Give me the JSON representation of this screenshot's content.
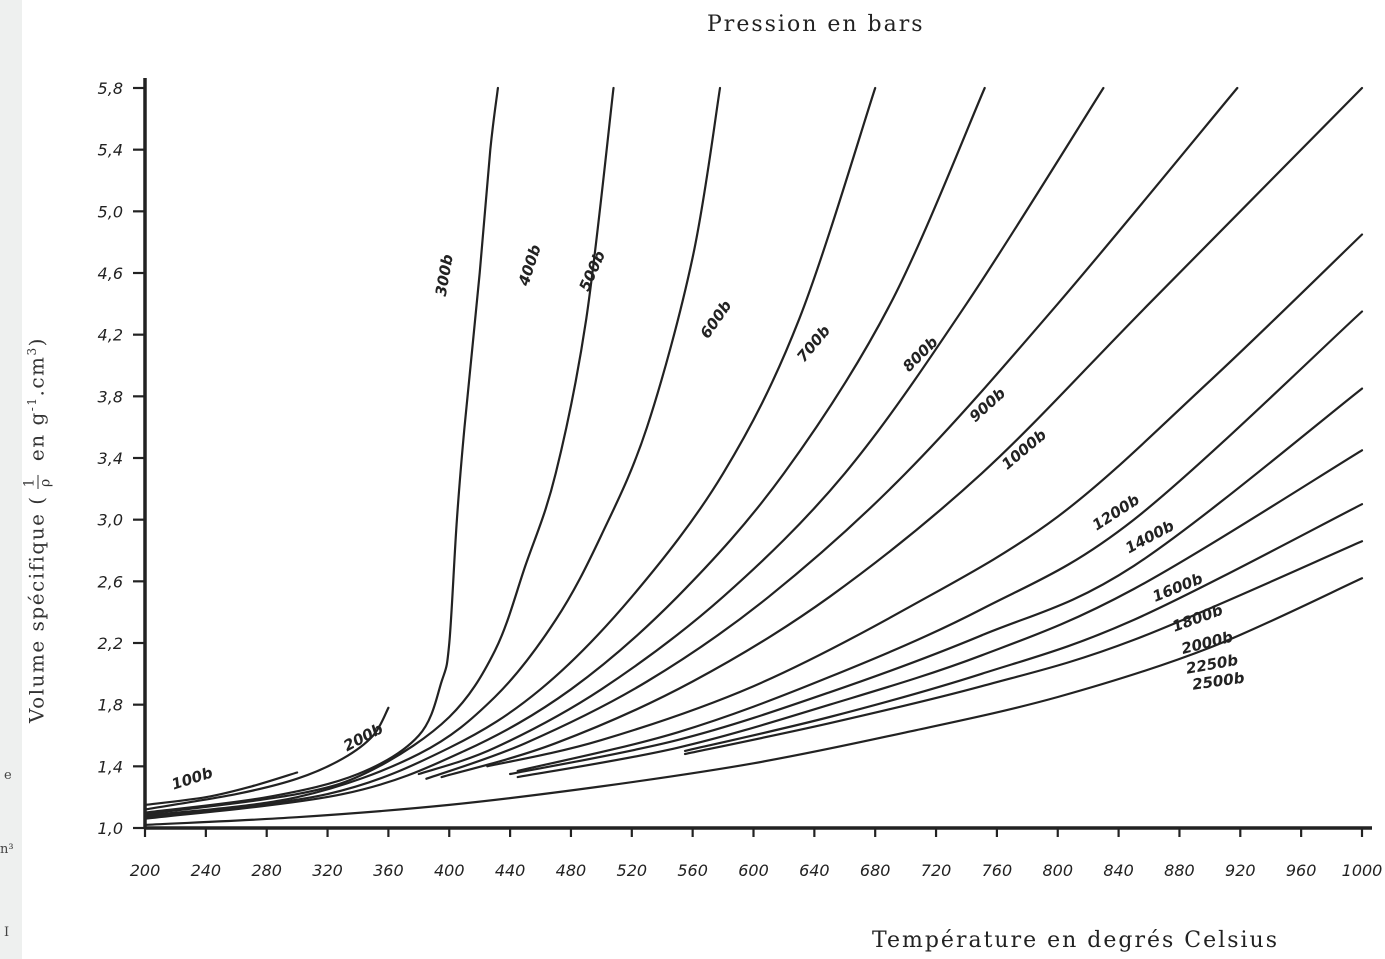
{
  "chart_data": {
    "type": "line",
    "title": "Pression en bars",
    "xlabel": "Température en degrés Celsius",
    "ylabel": {
      "prefix": "Volume spécifique (",
      "frac_num": "1",
      "frac_den": "ρ",
      "suffix": " en g",
      "exp1": "-1",
      "mid": ".cm",
      "exp2": "3",
      "close": ")"
    },
    "xlim": [
      200,
      1000
    ],
    "ylim": [
      1.0,
      5.8
    ],
    "x_ticks": [
      200,
      240,
      280,
      320,
      360,
      400,
      440,
      480,
      520,
      560,
      600,
      640,
      680,
      720,
      760,
      800,
      840,
      880,
      920,
      960,
      1000
    ],
    "x_tick_labels": [
      "200",
      "240",
      "280",
      "320",
      "360",
      "400",
      "440",
      "480",
      "520",
      "560",
      "600",
      "640",
      "680",
      "720",
      "760",
      "800",
      "840",
      "880",
      "920",
      "960",
      "1000"
    ],
    "y_ticks": [
      1.0,
      1.4,
      1.8,
      2.2,
      2.6,
      3.0,
      3.4,
      3.8,
      4.2,
      4.6,
      5.0,
      5.4,
      5.8
    ],
    "y_tick_labels": [
      "1,0",
      "1,4",
      "1,8",
      "2,2",
      "2,6",
      "3,0",
      "3,4",
      "3,8",
      "4,2",
      "4,6",
      "5,0",
      "5,4",
      "5,8"
    ],
    "grid": false,
    "series": [
      {
        "name": "100b",
        "points": [
          [
            200,
            1.15
          ],
          [
            240,
            1.2
          ],
          [
            270,
            1.27
          ],
          [
            300,
            1.36
          ]
        ]
      },
      {
        "name": "200b",
        "points": [
          [
            200,
            1.12
          ],
          [
            260,
            1.22
          ],
          [
            300,
            1.32
          ],
          [
            330,
            1.45
          ],
          [
            350,
            1.6
          ],
          [
            360,
            1.78
          ]
        ]
      },
      {
        "name": "300b",
        "points": [
          [
            200,
            1.1
          ],
          [
            280,
            1.2
          ],
          [
            340,
            1.35
          ],
          [
            380,
            1.6
          ],
          [
            395,
            1.95
          ],
          [
            400,
            2.2
          ],
          [
            405,
            3.0
          ],
          [
            410,
            3.6
          ],
          [
            420,
            4.6
          ],
          [
            427,
            5.4
          ],
          [
            432,
            5.8
          ]
        ]
      },
      {
        "name": "400b",
        "points": [
          [
            200,
            1.09
          ],
          [
            300,
            1.22
          ],
          [
            350,
            1.38
          ],
          [
            400,
            1.72
          ],
          [
            430,
            2.15
          ],
          [
            450,
            2.7
          ],
          [
            470,
            3.3
          ],
          [
            490,
            4.3
          ],
          [
            508,
            5.8
          ]
        ]
      },
      {
        "name": "500b",
        "points": [
          [
            200,
            1.08
          ],
          [
            300,
            1.2
          ],
          [
            380,
            1.48
          ],
          [
            430,
            1.85
          ],
          [
            470,
            2.35
          ],
          [
            500,
            2.9
          ],
          [
            530,
            3.6
          ],
          [
            560,
            4.7
          ],
          [
            578,
            5.8
          ]
        ]
      },
      {
        "name": "600b",
        "points": [
          [
            200,
            1.07
          ],
          [
            320,
            1.22
          ],
          [
            400,
            1.52
          ],
          [
            460,
            1.9
          ],
          [
            520,
            2.5
          ],
          [
            580,
            3.3
          ],
          [
            630,
            4.3
          ],
          [
            680,
            5.8
          ]
        ]
      },
      {
        "name": "700b",
        "points": [
          [
            200,
            1.06
          ],
          [
            330,
            1.22
          ],
          [
            410,
            1.5
          ],
          [
            480,
            1.9
          ],
          [
            550,
            2.5
          ],
          [
            620,
            3.3
          ],
          [
            690,
            4.4
          ],
          [
            752,
            5.8
          ]
        ]
      },
      {
        "name": "800b",
        "points": [
          [
            380,
            1.35
          ],
          [
            430,
            1.52
          ],
          [
            500,
            1.9
          ],
          [
            580,
            2.5
          ],
          [
            660,
            3.3
          ],
          [
            740,
            4.4
          ],
          [
            830,
            5.8
          ]
        ]
      },
      {
        "name": "900b",
        "points": [
          [
            385,
            1.32
          ],
          [
            450,
            1.55
          ],
          [
            530,
            1.95
          ],
          [
            610,
            2.5
          ],
          [
            700,
            3.3
          ],
          [
            800,
            4.4
          ],
          [
            918,
            5.8
          ]
        ]
      },
      {
        "name": "1000b",
        "points": [
          [
            395,
            1.33
          ],
          [
            470,
            1.55
          ],
          [
            560,
            1.95
          ],
          [
            650,
            2.5
          ],
          [
            750,
            3.3
          ],
          [
            860,
            4.4
          ],
          [
            1000,
            5.8
          ]
        ]
      },
      {
        "name": "1200b",
        "points": [
          [
            425,
            1.4
          ],
          [
            500,
            1.57
          ],
          [
            600,
            1.92
          ],
          [
            700,
            2.42
          ],
          [
            800,
            3.02
          ],
          [
            900,
            3.9
          ],
          [
            1000,
            4.85
          ]
        ]
      },
      {
        "name": "1400b",
        "points": [
          [
            445,
            1.37
          ],
          [
            550,
            1.62
          ],
          [
            650,
            1.98
          ],
          [
            750,
            2.42
          ],
          [
            850,
            3.0
          ],
          [
            1000,
            4.35
          ]
        ]
      },
      {
        "name": "1600b",
        "points": [
          [
            440,
            1.35
          ],
          [
            550,
            1.57
          ],
          [
            650,
            1.88
          ],
          [
            750,
            2.25
          ],
          [
            850,
            2.7
          ],
          [
            1000,
            3.85
          ]
        ]
      },
      {
        "name": "1800b",
        "points": [
          [
            445,
            1.33
          ],
          [
            550,
            1.52
          ],
          [
            650,
            1.8
          ],
          [
            750,
            2.12
          ],
          [
            850,
            2.55
          ],
          [
            1000,
            3.45
          ]
        ]
      },
      {
        "name": "2000b",
        "points": [
          [
            555,
            1.5
          ],
          [
            650,
            1.72
          ],
          [
            750,
            2.0
          ],
          [
            850,
            2.35
          ],
          [
            1000,
            3.1
          ]
        ]
      },
      {
        "name": "2250b",
        "points": [
          [
            555,
            1.48
          ],
          [
            650,
            1.68
          ],
          [
            750,
            1.92
          ],
          [
            850,
            2.22
          ],
          [
            1000,
            2.86
          ]
        ]
      },
      {
        "name": "2500b",
        "points": [
          [
            200,
            1.02
          ],
          [
            300,
            1.07
          ],
          [
            400,
            1.15
          ],
          [
            500,
            1.27
          ],
          [
            600,
            1.42
          ],
          [
            700,
            1.62
          ],
          [
            800,
            1.85
          ],
          [
            900,
            2.17
          ],
          [
            1000,
            2.62
          ]
        ]
      }
    ],
    "labels": [
      {
        "text": "100b",
        "x": 232,
        "y": 1.29,
        "angle": -18
      },
      {
        "text": "200b",
        "x": 345,
        "y": 1.56,
        "angle": -28
      },
      {
        "text": "300b",
        "x": 400,
        "y": 4.58,
        "angle": -80
      },
      {
        "text": "400b",
        "x": 456,
        "y": 4.64,
        "angle": -72
      },
      {
        "text": "500b",
        "x": 497,
        "y": 4.6,
        "angle": -66
      },
      {
        "text": "600b",
        "x": 578,
        "y": 4.28,
        "angle": -55
      },
      {
        "text": "700b",
        "x": 642,
        "y": 4.12,
        "angle": -50
      },
      {
        "text": "800b",
        "x": 712,
        "y": 4.05,
        "angle": -45
      },
      {
        "text": "900b",
        "x": 756,
        "y": 3.72,
        "angle": -42
      },
      {
        "text": "1000b",
        "x": 780,
        "y": 3.43,
        "angle": -40
      },
      {
        "text": "1200b",
        "x": 840,
        "y": 3.02,
        "angle": -33
      },
      {
        "text": "1400b",
        "x": 862,
        "y": 2.86,
        "angle": -28
      },
      {
        "text": "1600b",
        "x": 880,
        "y": 2.53,
        "angle": -22
      },
      {
        "text": "1800b",
        "x": 893,
        "y": 2.33,
        "angle": -20
      },
      {
        "text": "2000b",
        "x": 899,
        "y": 2.17,
        "angle": -14
      },
      {
        "text": "2250b",
        "x": 902,
        "y": 2.03,
        "angle": -10
      },
      {
        "text": "2500b",
        "x": 906,
        "y": 1.92,
        "angle": -8
      }
    ],
    "line_color": "#222222",
    "axis_color": "#222222"
  },
  "edge_marks": [
    "e",
    "n³",
    "I"
  ]
}
